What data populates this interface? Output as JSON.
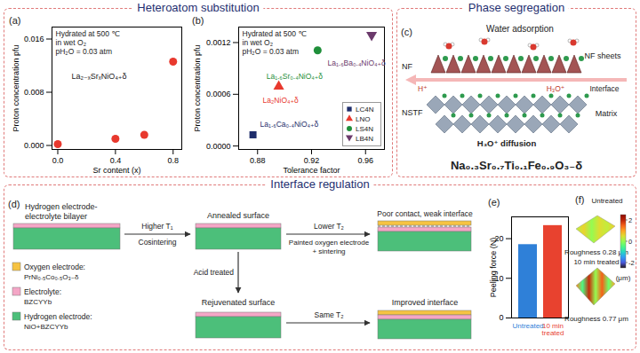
{
  "sections": [
    "Heteroatom substitution",
    "Phase segregation",
    "Interface regulation"
  ],
  "chart_data": [
    {
      "panel": "(a)",
      "type": "scatter",
      "x_label": "Sr content (x)",
      "y_label": "Proton concentration pfu",
      "annotations": [
        "Hydrated at 500 ℃",
        "in wet O₂",
        "pH₂O = 0.03 atm"
      ],
      "series": [
        {
          "name": "La₂₋ₓSrₓNiO₄₊δ",
          "color": "#e8392e",
          "marker": "circle",
          "x": [
            0,
            0.4,
            0.6,
            0.8
          ],
          "values": [
            0.0002,
            0.001,
            0.0016,
            0.0126
          ]
        }
      ],
      "xlim": [
        -0.04,
        0.86
      ],
      "xticks": [
        {
          "value": 0,
          "label": "0.0"
        },
        0.4,
        0.8
      ],
      "ylim": [
        -0.0006,
        0.0178
      ],
      "yticks": [
        {
          "value": 0,
          "label": "0.000"
        },
        0.008,
        0.016
      ],
      "grid": false
    },
    {
      "panel": "(b)",
      "type": "scatter",
      "x_label": "Tolerance factor",
      "y_label": "Proton concentration pfu",
      "annotations": [
        "Hydrated at 500 ℃",
        "in wet O₂",
        "pH₂O = 0.03 atm"
      ],
      "legend": "bottom-right",
      "series": [
        {
          "name": "LC4N",
          "label": "La₁.₆Ca₀.₄NiO₄₊δ",
          "color": "#1e2d6b",
          "marker": "square",
          "x": [
            0.8766
          ],
          "values": [
            0.00013
          ]
        },
        {
          "name": "LNO",
          "label": "La₂NiO₄₊δ",
          "color": "#e8392e",
          "marker": "triangle",
          "x": [
            0.8957
          ],
          "values": [
            0.00069
          ]
        },
        {
          "name": "LS4N",
          "label": "La₁.₆Sr₀.₄NiO₄₊δ",
          "color": "#1f8f3a",
          "marker": "circle",
          "x": [
            0.9245
          ],
          "values": [
            0.00111
          ]
        },
        {
          "name": "LB4N",
          "label": "La₁.₆Ba₀.₄NiO₄₊δ",
          "color": "#6b3a6b",
          "marker": "triangle-down",
          "x": [
            0.9645
          ],
          "values": [
            0.00127
          ]
        }
      ],
      "xlim": [
        0.866,
        0.974
      ],
      "xticks": [
        0.88,
        0.92,
        0.96
      ],
      "ylim": [
        -4e-05,
        0.00138
      ],
      "yticks": [
        {
          "value": 0,
          "label": "0.0000"
        },
        0.0006,
        0.0012
      ],
      "grid": false
    },
    {
      "panel": "(e)",
      "type": "bar",
      "y_label": "Peeling force (N)",
      "categories": [
        "Untreated",
        "10 min treated"
      ],
      "values": [
        18.5,
        23.3
      ],
      "colors": [
        "#2f80d8",
        "#e8422f"
      ],
      "ylim": [
        0,
        25.5
      ],
      "yticks": [
        0,
        10,
        20
      ],
      "grid": false
    }
  ],
  "diagrams": {
    "c": {
      "panel": "(c)",
      "water": "Water adsorption",
      "nf_sheets": "NF sheets",
      "nf": "NF",
      "h3o": "H₃O⁺",
      "h": "H⁺",
      "interface": "Interface",
      "nstf": "NSTF",
      "matrix": "Matrix",
      "diffusion": "H₃O⁺ diffusion",
      "formula": "Na₀.₃Sr₀.₇Ti₀.₁Fe₀.₉O₃₋δ"
    },
    "d": {
      "panel": "(d)",
      "bilayer": "Hydrogen electrode-electrolyte bilayer",
      "higher_t": "Higher T₁",
      "cosintering": "Cosintering",
      "annealed": "Annealed surface",
      "lower_t": "Lower T₂",
      "painted": "Painted oxygen electrode + sintering",
      "poor": "Poor contact, weak interface",
      "acid": "Acid treated",
      "rejuvenated": "Rejuvenated surface",
      "same_t": "Same T₂",
      "improved": "Improved interface",
      "legend": [
        {
          "name": "Oxygen electrode:",
          "material": "PrNi₀.₅Co₀.₅O₃₋δ",
          "color": "#f6c343"
        },
        {
          "name": "Electrolyte:",
          "material": "BZCYYb",
          "color": "#f4a6c6"
        },
        {
          "name": "Hydrogen electrode:",
          "material": "NiO+BZCYYb",
          "color": "#4cbf7a"
        }
      ]
    },
    "f": {
      "panel": "(f)",
      "surfaces": [
        {
          "label": "Untreated",
          "roughness": "Roughness 0.28 μm"
        },
        {
          "label": "10 min treated",
          "roughness": "Roughness 0.77 μm"
        }
      ],
      "colorbar": {
        "range": [
          -2.5,
          2.5
        ],
        "ticks": [
          2,
          0,
          -2
        ],
        "label": "(μm)"
      }
    }
  }
}
